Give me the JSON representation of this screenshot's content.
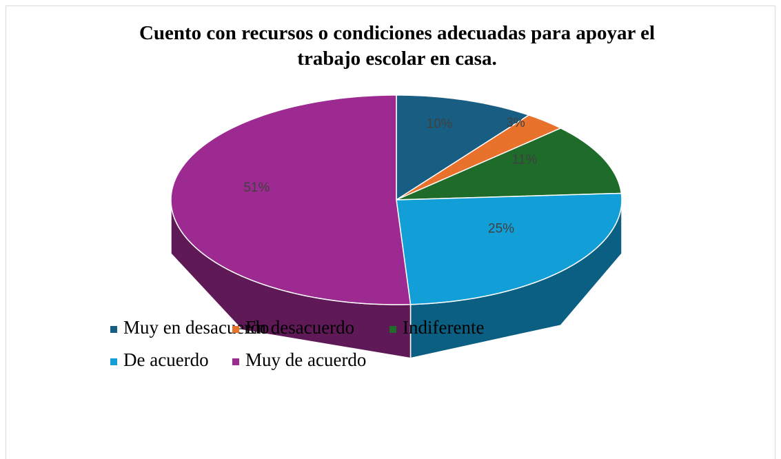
{
  "chart_data": {
    "type": "pie",
    "title": "Cuento con recursos o condiciones adecuadas para apoyar el trabajo escolar en casa.",
    "categories": [
      "Muy en desacuerdo",
      "En desacuerdo",
      "Indiferente",
      "De acuerdo",
      "Muy de acuerdo"
    ],
    "values": [
      10,
      3,
      11,
      25,
      51
    ],
    "value_labels": [
      "10%",
      "3%",
      "11%",
      "25%",
      "51%"
    ],
    "colors": [
      "#185e82",
      "#e8712b",
      "#1e6b2a",
      "#129fd8",
      "#9c2a90"
    ],
    "legend": "bottom"
  }
}
